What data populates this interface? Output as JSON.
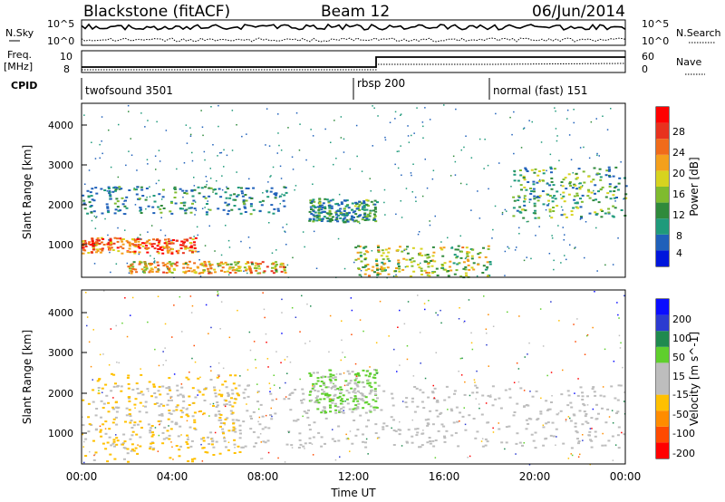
{
  "header": {
    "station": "Blackstone (fitACF)",
    "beam": "Beam 12",
    "date": "06/Jun/2014"
  },
  "noise_panel": {
    "left_label": "N.Sky",
    "right_label": "N.Search",
    "left_ticks": [
      "10^5",
      "10^0"
    ],
    "right_ticks": [
      "10^5",
      "10^0"
    ]
  },
  "freq_panel": {
    "left_label_top": "Freq.",
    "left_label_bottom": "[MHz]",
    "left_ticks": [
      "10",
      "8"
    ],
    "right_label": "Nave",
    "right_ticks": [
      "60",
      "0"
    ]
  },
  "cpid": {
    "label": "CPID",
    "segments": [
      {
        "start_hour": 0,
        "label": "twofsound 3501"
      },
      {
        "start_hour": 12,
        "label": "rbsp 200"
      },
      {
        "start_hour": 18,
        "label": "normal (fast) 151"
      }
    ]
  },
  "colors": {
    "power_scale": [
      "#0016dc",
      "#1f60ba",
      "#1f9a7b",
      "#2f8a3b",
      "#7fbb2e",
      "#d7d31f",
      "#f4a01c",
      "#f06b1a",
      "#e8321e",
      "#ff0000"
    ],
    "velocity_scale": [
      "#ff0000",
      "#ff4a00",
      "#ff8c00",
      "#ffc000",
      "#bdbdbd",
      "#bdbdbd",
      "#5fcf2d",
      "#1f8a4f",
      "#2b3bd0",
      "#0a0dff"
    ]
  },
  "chart_data": [
    {
      "type": "heatmap",
      "title": "",
      "xlabel": "Time UT",
      "ylabel": "Slant Range [km]",
      "xlim": [
        0,
        24
      ],
      "ylim": [
        180,
        4600
      ],
      "x_ticks": [
        "00:00",
        "04:00",
        "08:00",
        "12:00",
        "16:00",
        "20:00",
        "00:00"
      ],
      "y_ticks": [
        "1000",
        "2000",
        "3000",
        "4000"
      ],
      "colorbar_label": "Power [dB]",
      "colorbar_ticks": [
        "28",
        "24",
        "20",
        "16",
        "12",
        "8",
        "4"
      ],
      "colorbar_range": [
        0,
        30
      ],
      "features": [
        {
          "name": "near-range echo band",
          "time_range": [
            0,
            5
          ],
          "range_km": [
            800,
            1200
          ],
          "power_db": 28
        },
        {
          "name": "lower band",
          "time_range": [
            2,
            9
          ],
          "range_km": [
            300,
            600
          ],
          "power_db": 24
        },
        {
          "name": "upper band",
          "time_range": [
            0,
            9
          ],
          "range_km": [
            1800,
            2500
          ],
          "power_db": 12
        },
        {
          "name": "mid-period cluster",
          "time_range": [
            10,
            13
          ],
          "range_km": [
            1600,
            2200
          ],
          "power_db": 14
        },
        {
          "name": "dense low band",
          "time_range": [
            12,
            18
          ],
          "range_km": [
            200,
            1000
          ],
          "power_db": 20
        },
        {
          "name": "late band",
          "time_range": [
            19,
            24
          ],
          "range_km": [
            1700,
            3000
          ],
          "power_db": 16
        }
      ]
    },
    {
      "type": "heatmap",
      "title": "",
      "xlabel": "Time UT",
      "ylabel": "Slant Range [km]",
      "xlim": [
        0,
        24
      ],
      "ylim": [
        180,
        4600
      ],
      "x_ticks": [
        "00:00",
        "04:00",
        "08:00",
        "12:00",
        "16:00",
        "20:00",
        "00:00"
      ],
      "y_ticks": [
        "1000",
        "2000",
        "3000",
        "4000"
      ],
      "colorbar_label": "Velocity [m s^-1]",
      "colorbar_ticks": [
        "200",
        "100",
        "50",
        "15",
        "-15",
        "-50",
        "-100",
        "-200"
      ],
      "colorbar_range": [
        -250,
        250
      ],
      "features": [
        {
          "name": "ground scatter band",
          "time_range": [
            0,
            24
          ],
          "range_km": [
            600,
            2200
          ],
          "velocity": 0
        },
        {
          "name": "negative velocity patches",
          "time_range": [
            0,
            7
          ],
          "range_km": [
            200,
            2500
          ],
          "velocity": -80
        },
        {
          "name": "positive velocity patches",
          "time_range": [
            10,
            13
          ],
          "range_km": [
            1500,
            2600
          ],
          "velocity": 60
        }
      ]
    }
  ]
}
